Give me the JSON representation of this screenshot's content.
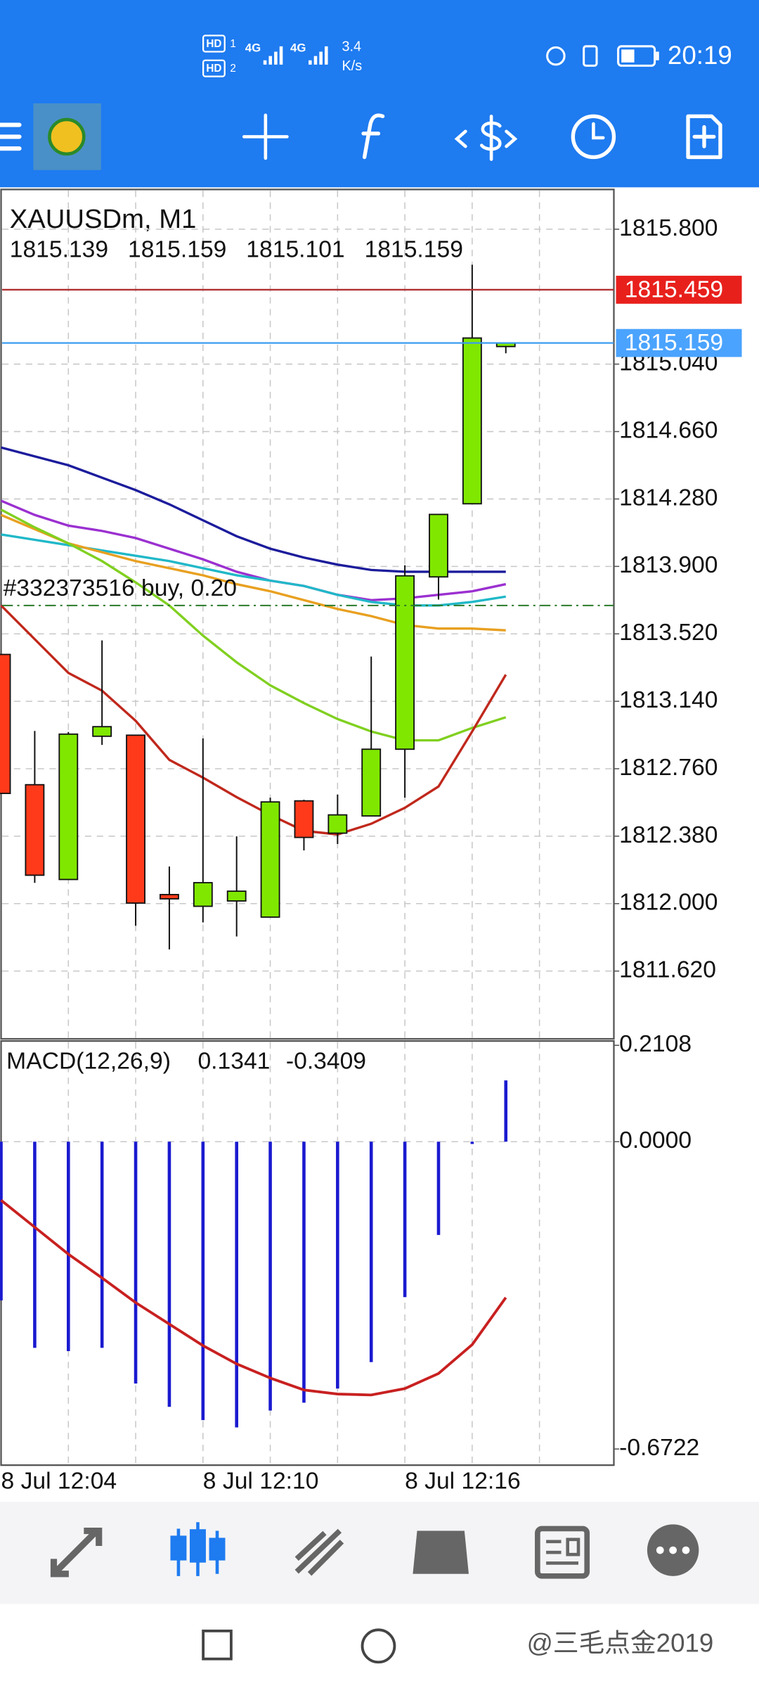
{
  "status_bar": {
    "sim1": "HD",
    "sim1_index": "1",
    "sim2": "HD",
    "sim2_index": "2",
    "net1": "4G",
    "net2": "4G",
    "speed": "3.4",
    "speed_unit": "K/s",
    "time": "20:19"
  },
  "chart_data": {
    "type": "candlestick",
    "title": "XAUUSDm, M1",
    "categories": [
      "8 Jul 12:04",
      null,
      null,
      null,
      null,
      null,
      "8 Jul 12:10",
      null,
      null,
      null,
      null,
      null,
      "8 Jul 12:16",
      null,
      null,
      null
    ],
    "candles": {
      "up_color": "#80e800",
      "down_color": "#ff3a1a",
      "open": [
        1813.404,
        1812.67,
        1812.136,
        1812.943,
        1812.949,
        1812.051,
        1811.985,
        1812.015,
        1811.924,
        1812.579,
        1812.397,
        1812.494,
        1812.87,
        1813.841,
        1814.253,
        1815.139
      ],
      "high": [
        1813.404,
        1812.973,
        1812.967,
        1813.483,
        1812.949,
        1812.209,
        1812.931,
        1812.379,
        1812.597,
        1812.585,
        1812.615,
        1813.392,
        1813.907,
        1814.193,
        1815.6,
        1815.159
      ],
      "low": [
        1812.621,
        1812.117,
        1812.136,
        1812.894,
        1811.875,
        1811.742,
        1811.894,
        1811.815,
        1811.924,
        1812.3,
        1812.336,
        1812.494,
        1812.597,
        1813.713,
        1814.253,
        1815.101
      ],
      "close": [
        1812.621,
        1812.16,
        1812.955,
        1812.997,
        1812.003,
        1812.027,
        1812.118,
        1812.07,
        1812.573,
        1812.373,
        1812.5,
        1812.87,
        1813.847,
        1814.193,
        1815.187,
        1815.159
      ]
    },
    "series": [
      {
        "color": "#1c1c9c",
        "values": [
          1814.57,
          1814.52,
          1814.47,
          1814.4,
          1814.33,
          1814.25,
          1814.16,
          1814.07,
          1814.0,
          1813.95,
          1813.91,
          1813.88,
          1813.87,
          1813.87,
          1813.87,
          1813.87
        ]
      },
      {
        "color": "#9b30d0",
        "values": [
          1814.27,
          1814.19,
          1814.13,
          1814.1,
          1814.06,
          1814.0,
          1813.94,
          1813.87,
          1813.82,
          1813.79,
          1813.74,
          1813.71,
          1813.72,
          1813.74,
          1813.76,
          1813.8
        ]
      },
      {
        "color": "#20b8c8",
        "values": [
          1814.08,
          1814.05,
          1814.02,
          1813.99,
          1813.96,
          1813.93,
          1813.89,
          1813.85,
          1813.82,
          1813.79,
          1813.74,
          1813.7,
          1813.68,
          1813.68,
          1813.7,
          1813.73
        ]
      },
      {
        "color": "#e8a020",
        "values": [
          1814.19,
          1814.11,
          1814.03,
          1813.98,
          1813.93,
          1813.89,
          1813.85,
          1813.8,
          1813.76,
          1813.71,
          1813.66,
          1813.62,
          1813.57,
          1813.55,
          1813.55,
          1813.54
        ]
      },
      {
        "color": "#80d020",
        "values": [
          1814.22,
          1814.12,
          1814.03,
          1813.93,
          1813.81,
          1813.68,
          1813.51,
          1813.36,
          1813.23,
          1813.13,
          1813.04,
          1812.97,
          1812.92,
          1812.92,
          1812.99,
          1813.05
        ]
      },
      {
        "color": "#c0281c",
        "values": [
          1813.68,
          1813.49,
          1813.3,
          1813.2,
          1813.03,
          1812.81,
          1812.71,
          1812.6,
          1812.5,
          1812.41,
          1812.39,
          1812.45,
          1812.54,
          1812.66,
          1812.97,
          1813.29
        ]
      }
    ],
    "ylim": [
      1811.238,
      1816.024
    ],
    "yticks": [
      {
        "value": 1815.8,
        "label": "1815.800"
      },
      {
        "value": 1815.04,
        "label": "1815.040"
      },
      {
        "value": 1814.66,
        "label": "1814.660"
      },
      {
        "value": 1814.28,
        "label": "1814.280"
      },
      {
        "value": 1813.9,
        "label": "1813.900"
      },
      {
        "value": 1813.52,
        "label": "1813.520"
      },
      {
        "value": 1813.14,
        "label": "1813.140"
      },
      {
        "value": 1812.76,
        "label": "1812.760"
      },
      {
        "value": 1812.38,
        "label": "1812.380"
      },
      {
        "value": 1812.0,
        "label": "1812.000"
      },
      {
        "value": 1811.62,
        "label": "1811.620"
      }
    ],
    "grid": true,
    "price_lines": [
      {
        "value": 1815.459,
        "color": "#e8201c",
        "line_color": "#b03030"
      },
      {
        "value": 1815.159,
        "color": "#4aa3ff",
        "line_color": "#3a9cf0"
      }
    ],
    "order_line": {
      "label": "#332373516 buy, 0.20",
      "value": 1813.68,
      "color": "#2a7a2a"
    },
    "macd": {
      "title": "MACD(12,26,9)",
      "histogram": {
        "color": "#1a1ad0",
        "values": [
          -0.347,
          -0.451,
          -0.458,
          -0.451,
          -0.529,
          -0.58,
          -0.609,
          -0.625,
          -0.588,
          -0.571,
          -0.54,
          -0.482,
          -0.34,
          -0.204,
          -0.005,
          0.1341
        ]
      },
      "signal": {
        "color": "#c82020",
        "values": [
          -0.128,
          -0.187,
          -0.246,
          -0.298,
          -0.352,
          -0.399,
          -0.446,
          -0.486,
          -0.517,
          -0.543,
          -0.552,
          -0.554,
          -0.54,
          -0.507,
          -0.444,
          -0.3409
        ]
      },
      "ylim": [
        -0.6722,
        0.2108
      ],
      "yticks": [
        0.2108,
        {
          "value": 0,
          "label": "0.0000"
        },
        -0.6722
      ]
    }
  },
  "watermark": "@三毛点金2019"
}
